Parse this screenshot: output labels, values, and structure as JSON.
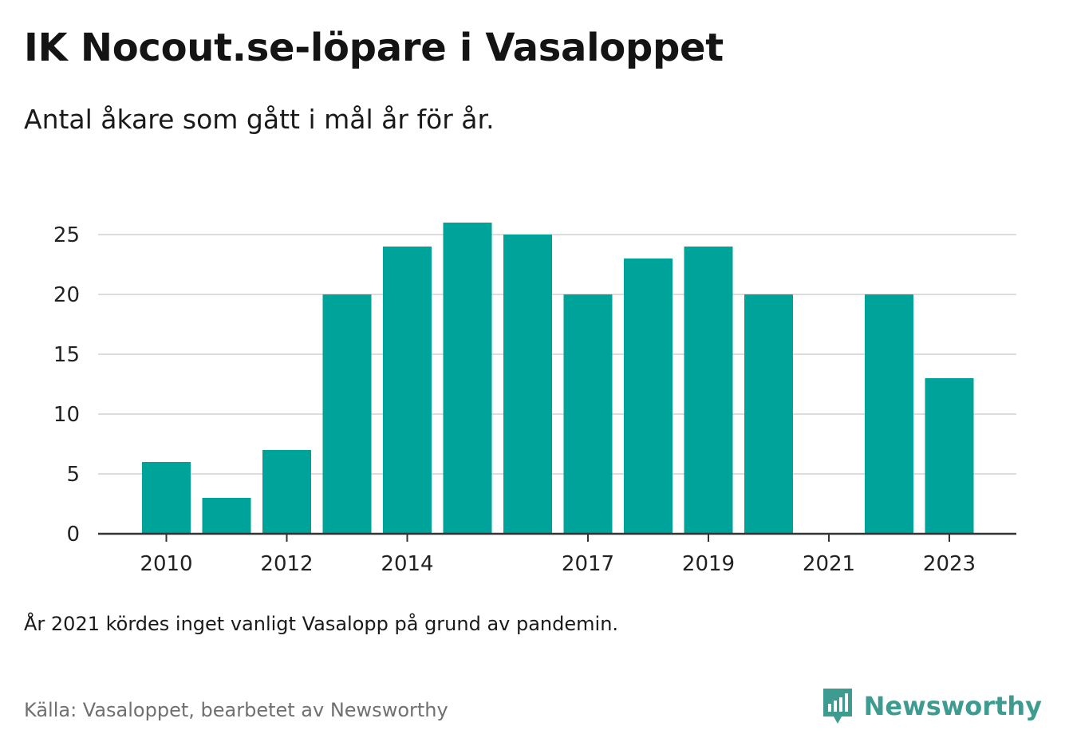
{
  "header": {
    "title": "IK Nocout.se-löpare i Vasaloppet",
    "subtitle": "Antal åkare som gått i mål år för år."
  },
  "footer": {
    "note": "År 2021 kördes inget vanligt Vasalopp på grund av pandemin.",
    "source": "Källa: Vasaloppet, bearbetet av Newsworthy",
    "brand": "Newsworthy",
    "brand_icon": "newsworthy-logo-icon"
  },
  "colors": {
    "bar": "#00a39a",
    "grid": "#dddddd",
    "axis": "#333333",
    "brand": "#3d9b8f"
  },
  "chart_data": {
    "type": "bar",
    "categories": [
      2010,
      2011,
      2012,
      2013,
      2014,
      2015,
      2016,
      2017,
      2018,
      2019,
      2020,
      2021,
      2022,
      2023
    ],
    "values": [
      6,
      3,
      7,
      20,
      24,
      26,
      25,
      20,
      23,
      24,
      20,
      null,
      20,
      13
    ],
    "x_tick_labels": [
      {
        "year": 2010,
        "label": "2010"
      },
      {
        "year": 2012,
        "label": "2012"
      },
      {
        "year": 2014,
        "label": "2014"
      },
      {
        "year": 2017,
        "label": "2017"
      },
      {
        "year": 2019,
        "label": "2019"
      },
      {
        "year": 2021,
        "label": "2021"
      },
      {
        "year": 2023,
        "label": "2023"
      }
    ],
    "y_ticks": [
      0,
      5,
      10,
      15,
      20,
      25
    ],
    "ylim": [
      0,
      27
    ],
    "grid": true,
    "legend": "none"
  }
}
